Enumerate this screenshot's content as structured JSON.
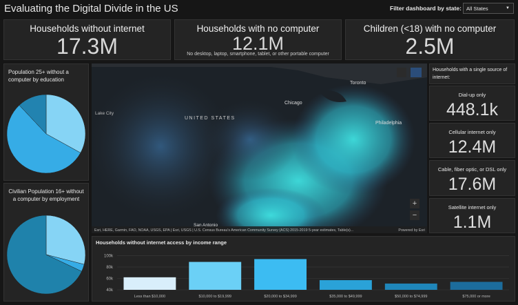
{
  "header": {
    "title": "Evaluating the Digital Divide in the US",
    "filter_label": "Filter dashboard by state:",
    "filter_value": "All States"
  },
  "indicators": [
    {
      "title": "Households without internet",
      "value": "17.3M"
    },
    {
      "title": "Households with no computer",
      "value": "12.1M",
      "subtitle": "No desktop, laptop, smartphone, tablet, or other portable computer"
    },
    {
      "title": "Children (<18) with no computer",
      "value": "2.5M"
    }
  ],
  "map": {
    "labels": [
      "UNITED STATES",
      "Toronto",
      "Chicago",
      "Philadelphia",
      "Lake City",
      "San Antonio"
    ],
    "attribution": "Esri, HERE, Garmin, FAO, NOAA, USGS, EPA | Esri, USGS | U.S. Census Bureau's American Community Survey (ACS) 2015-2019 5-year estimates, Table(s)...",
    "powered_by": "Powered by Esri"
  },
  "single_source": {
    "title": "Households with a single source of internet:",
    "items": [
      {
        "title": "Dial-up only",
        "value": "448.1k"
      },
      {
        "title": "Cellular internet only",
        "value": "12.4M"
      },
      {
        "title": "Cable, fiber optic, or DSL only",
        "value": "17.6M"
      },
      {
        "title": "Satellite internet only",
        "value": "1.1M"
      }
    ]
  },
  "chart_data": [
    {
      "type": "pie",
      "title": "Population 25+ without a computer by education",
      "values": [
        33,
        55,
        12
      ],
      "colors": [
        "#86d4f5",
        "#36ace6",
        "#2283b0"
      ]
    },
    {
      "type": "pie",
      "title": "Civilian Population 16+ without a computer by employment",
      "values": [
        29,
        3,
        68
      ],
      "colors": [
        "#86d4f5",
        "#36ace6",
        "#1f82ab"
      ]
    },
    {
      "type": "bar",
      "title": "Households without internet access by income range",
      "categories": [
        "Less than $10,000",
        "$10,000 to $19,999",
        "$20,000 to $34,999",
        "$35,000 to $49,999",
        "$50,000 to $74,999",
        "$75,000 or more"
      ],
      "values": [
        62000,
        89000,
        94000,
        57000,
        51000,
        54000
      ],
      "colors": [
        "#d9eefb",
        "#6bd0f6",
        "#3cbcf2",
        "#2aa2d8",
        "#1f86b9",
        "#1c6c9c"
      ],
      "ylim": [
        40000,
        103000
      ],
      "yticks": [
        {
          "value": 40000,
          "label": "40k"
        },
        {
          "value": 60000,
          "label": "60k"
        },
        {
          "value": 80000,
          "label": "80k"
        },
        {
          "value": 100000,
          "label": "100k"
        }
      ],
      "grid": true
    }
  ]
}
